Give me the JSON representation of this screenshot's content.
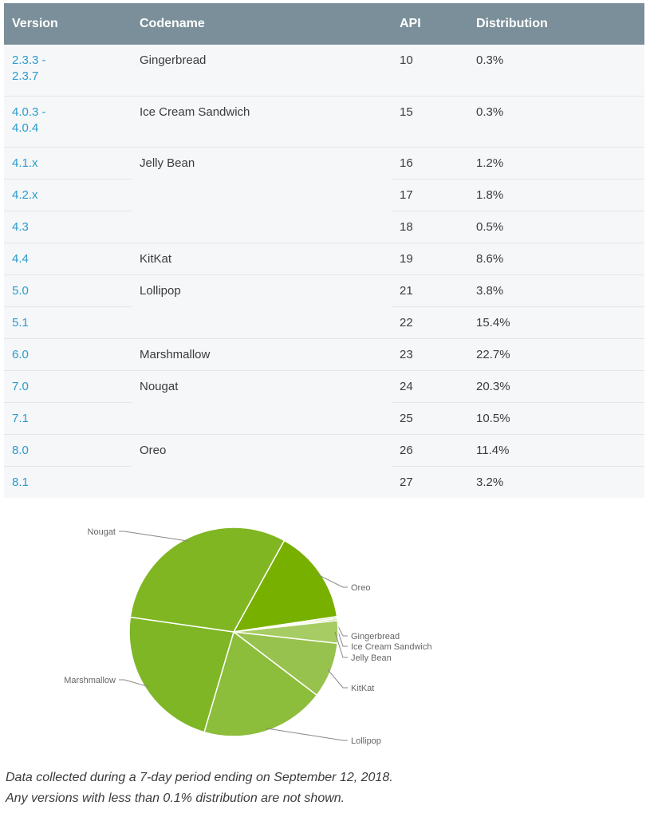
{
  "table": {
    "headers": [
      "Version",
      "Codename",
      "API",
      "Distribution"
    ],
    "rows": [
      {
        "version": "2.3.3 -\n2.3.7",
        "codename": "Gingerbread",
        "api": "10",
        "dist": "0.3%"
      },
      {
        "version": "4.0.3 -\n4.0.4",
        "codename": "Ice Cream Sandwich",
        "api": "15",
        "dist": "0.3%"
      },
      {
        "version": "4.1.x",
        "codename": "Jelly Bean",
        "api": "16",
        "dist": "1.2%"
      },
      {
        "version": "4.2.x",
        "codename": "",
        "api": "17",
        "dist": "1.8%"
      },
      {
        "version": "4.3",
        "codename": "",
        "api": "18",
        "dist": "0.5%"
      },
      {
        "version": "4.4",
        "codename": "KitKat",
        "api": "19",
        "dist": "8.6%"
      },
      {
        "version": "5.0",
        "codename": "Lollipop",
        "api": "21",
        "dist": "3.8%"
      },
      {
        "version": "5.1",
        "codename": "",
        "api": "22",
        "dist": "15.4%"
      },
      {
        "version": "6.0",
        "codename": "Marshmallow",
        "api": "23",
        "dist": "22.7%"
      },
      {
        "version": "7.0",
        "codename": "Nougat",
        "api": "24",
        "dist": "20.3%"
      },
      {
        "version": "7.1",
        "codename": "",
        "api": "25",
        "dist": "10.5%"
      },
      {
        "version": "8.0",
        "codename": "Oreo",
        "api": "26",
        "dist": "11.4%"
      },
      {
        "version": "8.1",
        "codename": "",
        "api": "27",
        "dist": "3.2%"
      }
    ]
  },
  "chart_data": {
    "type": "pie",
    "title": "",
    "categories": [
      "Oreo",
      "Gingerbread",
      "Ice Cream Sandwich",
      "Jelly Bean",
      "KitKat",
      "Lollipop",
      "Marshmallow",
      "Nougat"
    ],
    "values": [
      14.6,
      0.3,
      0.3,
      3.5,
      8.6,
      19.2,
      22.7,
      30.8
    ],
    "colors": [
      "#78b000",
      "#c9df9a",
      "#b9d67f",
      "#a7cc63",
      "#97c24d",
      "#8cbd3b",
      "#7eb626",
      "#80b622"
    ],
    "legend": "leader-line labels around pie"
  },
  "footnote": {
    "line1": "Data collected during a 7-day period ending on September 12, 2018.",
    "line2": "Any versions with less than 0.1% distribution are not shown."
  }
}
